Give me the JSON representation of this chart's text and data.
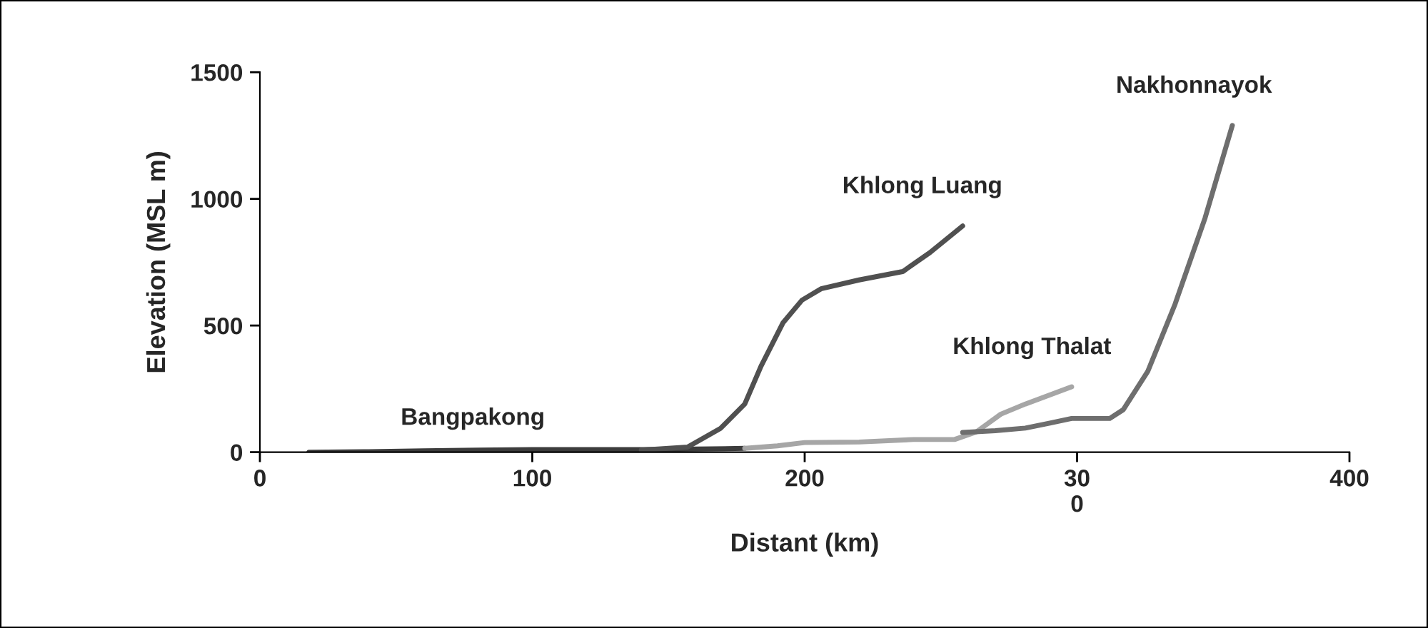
{
  "chart_data": {
    "type": "line",
    "xlabel": "Distant (km)",
    "ylabel": "Elevation (MSL m)",
    "xlim": [
      0,
      400
    ],
    "xticks": [
      0,
      100,
      200,
      {
        "value": 300,
        "label": "30\n0"
      },
      400
    ],
    "ylim": [
      0,
      1500
    ],
    "yticks": [
      0,
      500,
      1000,
      1500
    ],
    "grid": false,
    "legend": false,
    "marker": "none",
    "line_style": "solid",
    "series": [
      {
        "name": "Bangpakong",
        "color": "#3c3c3c",
        "x": [
          18,
          40,
          60,
          80,
          100,
          120,
          140,
          160,
          178
        ],
        "values": [
          0,
          2,
          5,
          8,
          10,
          10,
          10,
          12,
          15
        ]
      },
      {
        "name": "Khlong Luang",
        "color": "#505050",
        "x": [
          140,
          157,
          169,
          178,
          184,
          192,
          199,
          206,
          220,
          236,
          246,
          258
        ],
        "values": [
          8,
          20,
          93,
          190,
          340,
          510,
          600,
          645,
          680,
          713,
          788,
          893
        ]
      },
      {
        "name": "Khlong Thalat",
        "color": "#a6a6a6",
        "x": [
          178,
          190,
          200,
          220,
          240,
          255,
          263,
          272,
          281,
          298
        ],
        "values": [
          15,
          25,
          38,
          40,
          50,
          50,
          80,
          150,
          190,
          258
        ]
      },
      {
        "name": "Nakhonnayok",
        "color": "#6e6e6e",
        "x": [
          258,
          270,
          281,
          290,
          298,
          312,
          317,
          326,
          336,
          347,
          357
        ],
        "values": [
          78,
          85,
          95,
          115,
          133,
          133,
          168,
          320,
          585,
          925,
          1290
        ]
      }
    ]
  }
}
